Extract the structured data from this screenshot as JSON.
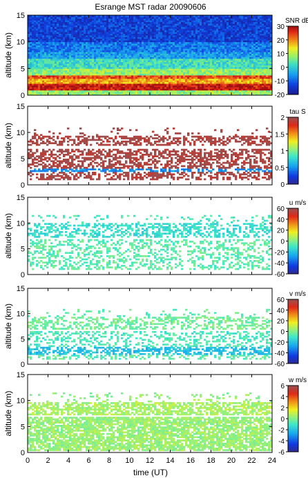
{
  "title": "Esrange MST radar 20090606",
  "xlabel": "time (UT)",
  "chart_data": [
    {
      "type": "heatmap",
      "ylabel": "altitude (km)",
      "xlim": [
        0,
        24
      ],
      "ylim": [
        0,
        15
      ],
      "colorbar": {
        "label": "SNR dB",
        "range": [
          -20,
          30
        ],
        "ticks": [
          -20,
          -10,
          0,
          10,
          20,
          30
        ]
      },
      "palette": "rainbow_high_red",
      "bands": [
        {
          "alt": [
            0.0,
            0.9
          ],
          "value": 8,
          "note": "ground clutter (cyan-green)"
        },
        {
          "alt": [
            0.9,
            2.2
          ],
          "value": 28
        },
        {
          "alt": [
            2.2,
            3.2
          ],
          "value": 18
        },
        {
          "alt": [
            3.2,
            3.8
          ],
          "value": 24
        },
        {
          "alt": [
            3.8,
            5.0
          ],
          "value": 8
        },
        {
          "alt": [
            5.0,
            7.0
          ],
          "value": 2
        },
        {
          "alt": [
            7.0,
            8.0
          ],
          "value": -5
        },
        {
          "alt": [
            8.0,
            10.0
          ],
          "value": -8
        },
        {
          "alt": [
            10.0,
            15.0
          ],
          "value": -13
        }
      ]
    },
    {
      "type": "heatmap",
      "ylabel": "altitude (km)",
      "xlim": [
        0,
        24
      ],
      "ylim": [
        0,
        15
      ],
      "colorbar": {
        "label": "tau S",
        "range": [
          0,
          2
        ],
        "ticks": [
          0,
          0.5,
          1,
          1.5,
          2
        ]
      },
      "palette": "rainbow_high_brown",
      "bands": [
        {
          "alt": [
            1.0,
            2.5
          ],
          "value": 1.95,
          "density": 0.5
        },
        {
          "alt": [
            2.5,
            3.2
          ],
          "value": 0.5,
          "density": 0.55
        },
        {
          "alt": [
            3.2,
            7.0
          ],
          "value": 1.95,
          "density": 0.55
        },
        {
          "alt": [
            7.6,
            9.5
          ],
          "value": 1.95,
          "density": 0.5
        },
        {
          "alt": [
            9.5,
            11.0
          ],
          "value": 1.95,
          "density": 0.08
        }
      ]
    },
    {
      "type": "heatmap",
      "ylabel": "altitude (km)",
      "xlim": [
        0,
        24
      ],
      "ylim": [
        0,
        15
      ],
      "colorbar": {
        "label": "u m/s",
        "range": [
          -60,
          60
        ],
        "ticks": [
          -60,
          -40,
          -20,
          0,
          20,
          40,
          60
        ]
      },
      "palette": "rainbow_high_brown",
      "bands": [
        {
          "alt": [
            1.0,
            6.8
          ],
          "value": -5,
          "density": 0.35
        },
        {
          "alt": [
            7.3,
            10.0
          ],
          "value": -12,
          "density": 0.45
        },
        {
          "alt": [
            10.0,
            11.5
          ],
          "value": -8,
          "density": 0.12
        }
      ]
    },
    {
      "type": "heatmap",
      "ylabel": "altitude (km)",
      "xlim": [
        0,
        24
      ],
      "ylim": [
        0,
        15
      ],
      "colorbar": {
        "label": "v m/s",
        "range": [
          -60,
          60
        ],
        "ticks": [
          -60,
          -40,
          -20,
          0,
          20,
          40,
          60
        ]
      },
      "palette": "rainbow_high_brown",
      "bands": [
        {
          "alt": [
            1.0,
            2.0
          ],
          "value": -5,
          "density": 0.3
        },
        {
          "alt": [
            2.0,
            3.5
          ],
          "value": -20,
          "density": 0.55
        },
        {
          "alt": [
            3.5,
            6.5
          ],
          "value": -8,
          "density": 0.35
        },
        {
          "alt": [
            7.0,
            9.5
          ],
          "value": -2,
          "density": 0.45
        },
        {
          "alt": [
            9.5,
            11.0
          ],
          "value": -5,
          "density": 0.1
        }
      ]
    },
    {
      "type": "heatmap",
      "ylabel": "altitude (km)",
      "xlim": [
        0,
        24
      ],
      "ylim": [
        0,
        15
      ],
      "colorbar": {
        "label": "w m/s",
        "range": [
          -6,
          6
        ],
        "ticks": [
          -6,
          -4,
          -2,
          0,
          2,
          4,
          6
        ]
      },
      "palette": "rainbow_high_brown",
      "bands": [
        {
          "alt": [
            0.3,
            6.8
          ],
          "value": 0.4,
          "density": 0.78
        },
        {
          "alt": [
            7.2,
            9.6
          ],
          "value": 0.6,
          "density": 0.65
        },
        {
          "alt": [
            9.6,
            11.5
          ],
          "value": 0.3,
          "density": 0.12
        }
      ]
    }
  ],
  "xticks": [
    0,
    2,
    4,
    6,
    8,
    10,
    12,
    14,
    16,
    18,
    20,
    22,
    24
  ],
  "yticks": [
    0,
    5,
    10,
    15
  ]
}
